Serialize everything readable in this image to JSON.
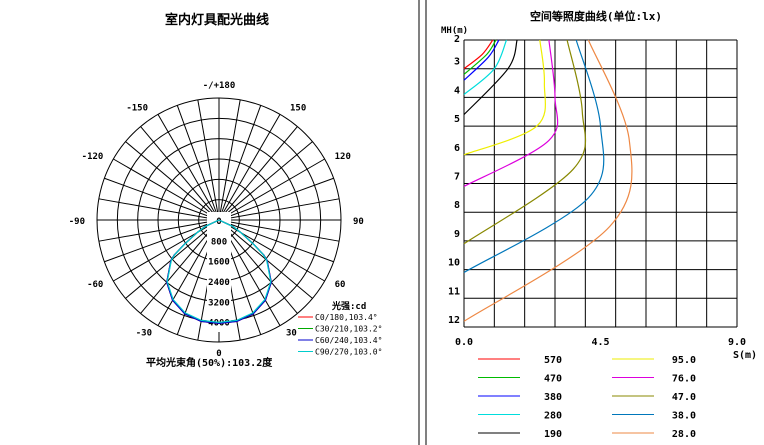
{
  "left_panel": {
    "title": "室内灯具配光曲线",
    "unit_label": "光强:cd",
    "beam_angle_label": "平均光束角(50%):103.2度"
  },
  "right_panel": {
    "title": "空间等照度曲线(单位:lx)",
    "y_axis_label": "MH(m)",
    "x_axis_label": "S(m)"
  },
  "chart_data": [
    {
      "type": "polar",
      "title": "室内灯具配光曲线",
      "angle_labels": [
        "-/+180",
        "150",
        "120",
        "90",
        "60",
        "30",
        "0",
        "-30",
        "-60",
        "-90",
        "-120",
        "-150"
      ],
      "radial_ticks": [
        "0",
        "800",
        "1600",
        "2400",
        "3200",
        "4000"
      ],
      "radial_max": 4800,
      "unit": "光强:cd",
      "series": [
        {
          "name": "C0/180,103.4°",
          "color": "#ff0000"
        },
        {
          "name": "C30/210,103.2°",
          "color": "#00aa00"
        },
        {
          "name": "C60/240,103.4°",
          "color": "#0000cc"
        },
        {
          "name": "C90/270,103.0°",
          "color": "#00cccc"
        }
      ],
      "intensity_profile": {
        "angles_deg": [
          0,
          10,
          20,
          30,
          40,
          50,
          52,
          55,
          60,
          65,
          70
        ],
        "values_cd": [
          4070,
          4050,
          3930,
          3650,
          3200,
          2470,
          2230,
          1650,
          1000,
          600,
          0
        ]
      }
    },
    {
      "type": "contour",
      "title": "空间等照度曲线(单位:lx)",
      "xlabel": "S(m)",
      "ylabel": "MH(m)",
      "xlim": [
        0.0,
        9.0
      ],
      "ylim": [
        2,
        12
      ],
      "x_ticks": [
        "0.0",
        "4.5",
        "9.0"
      ],
      "y_ticks": [
        "2",
        "3",
        "4",
        "5",
        "6",
        "7",
        "8",
        "9",
        "10",
        "11",
        "12"
      ],
      "levels": [
        {
          "value": "570",
          "color": "#ff0000",
          "h": [
            2.0,
            2.5,
            3.0
          ],
          "s": [
            0.95,
            0.6,
            0.0
          ]
        },
        {
          "value": "470",
          "color": "#00bb00",
          "h": [
            2.0,
            2.5,
            3.2
          ],
          "s": [
            1.05,
            0.75,
            0.0
          ]
        },
        {
          "value": "380",
          "color": "#0000ff",
          "h": [
            2.0,
            2.6,
            3.4
          ],
          "s": [
            1.15,
            0.8,
            0.0
          ]
        },
        {
          "value": "280",
          "color": "#00dddd",
          "h": [
            2.0,
            3.0,
            3.9
          ],
          "s": [
            1.4,
            1.0,
            0.0
          ]
        },
        {
          "value": "190",
          "color": "#000000",
          "h": [
            2.0,
            3.0,
            4.6
          ],
          "s": [
            1.75,
            1.45,
            0.0
          ]
        },
        {
          "value": "95.0",
          "color": "#eeee00",
          "h": [
            2.0,
            3.5,
            5.0,
            6.0
          ],
          "s": [
            2.5,
            2.65,
            2.4,
            0.0
          ]
        },
        {
          "value": "76.0",
          "color": "#dd00dd",
          "h": [
            2.0,
            4.0,
            5.5,
            7.1
          ],
          "s": [
            2.8,
            3.0,
            2.8,
            0.0
          ]
        },
        {
          "value": "47.0",
          "color": "#888800",
          "h": [
            2.0,
            4.5,
            6.5,
            9.1
          ],
          "s": [
            3.4,
            3.9,
            3.6,
            0.0
          ]
        },
        {
          "value": "38.0",
          "color": "#0077bb",
          "h": [
            2.0,
            5.0,
            7.5,
            10.1
          ],
          "s": [
            3.7,
            4.5,
            4.1,
            0.0
          ]
        },
        {
          "value": "28.0",
          "color": "#ee8844",
          "h": [
            2.0,
            5.5,
            8.5,
            11.8
          ],
          "s": [
            4.1,
            5.45,
            4.8,
            0.0
          ]
        }
      ]
    }
  ]
}
